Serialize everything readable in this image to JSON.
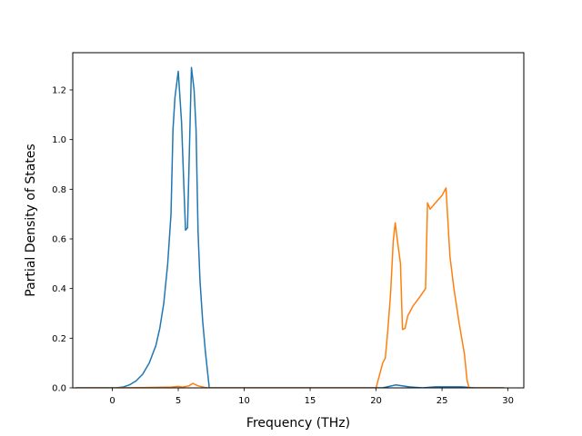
{
  "chart_data": {
    "type": "line",
    "title": "",
    "xlabel": "Frequency (THz)",
    "ylabel": "Partial Density of States",
    "xlim": [
      -3.0,
      31.2
    ],
    "ylim": [
      0.0,
      1.35
    ],
    "xticks": [
      0,
      5,
      10,
      15,
      20,
      25,
      30
    ],
    "yticks": [
      0.0,
      0.2,
      0.4,
      0.6,
      0.8,
      1.0,
      1.2
    ],
    "xtick_labels": [
      "0",
      "5",
      "10",
      "15",
      "20",
      "25",
      "30"
    ],
    "ytick_labels": [
      "0.0",
      "0.2",
      "0.4",
      "0.6",
      "0.8",
      "1.0",
      "1.2"
    ],
    "grid": false,
    "legend": "none",
    "series": [
      {
        "color": "#1f77b4",
        "points": [
          [
            -2.8,
            0.0
          ],
          [
            0.3,
            0.0
          ],
          [
            0.8,
            0.003
          ],
          [
            1.3,
            0.012
          ],
          [
            1.8,
            0.028
          ],
          [
            2.3,
            0.055
          ],
          [
            2.8,
            0.1
          ],
          [
            3.3,
            0.17
          ],
          [
            3.6,
            0.24
          ],
          [
            3.9,
            0.34
          ],
          [
            4.2,
            0.5
          ],
          [
            4.45,
            0.7
          ],
          [
            4.6,
            1.04
          ],
          [
            4.75,
            1.17
          ],
          [
            5.0,
            1.275
          ],
          [
            5.25,
            1.07
          ],
          [
            5.4,
            0.85
          ],
          [
            5.55,
            0.635
          ],
          [
            5.7,
            0.645
          ],
          [
            6.0,
            1.29
          ],
          [
            6.2,
            1.2
          ],
          [
            6.35,
            1.04
          ],
          [
            6.5,
            0.63
          ],
          [
            6.65,
            0.43
          ],
          [
            6.85,
            0.27
          ],
          [
            7.05,
            0.15
          ],
          [
            7.25,
            0.05
          ],
          [
            7.35,
            0.0
          ],
          [
            20.5,
            0.0
          ],
          [
            21.5,
            0.012
          ],
          [
            22.5,
            0.004
          ],
          [
            23.5,
            0.0
          ],
          [
            24.5,
            0.004
          ],
          [
            26.5,
            0.004
          ],
          [
            27.5,
            0.0
          ],
          [
            29.7,
            0.0
          ]
        ]
      },
      {
        "color": "#ff7f0e",
        "points": [
          [
            -2.8,
            0.0
          ],
          [
            0.5,
            0.0
          ],
          [
            2.0,
            0.001
          ],
          [
            4.5,
            0.003
          ],
          [
            5.0,
            0.006
          ],
          [
            5.3,
            0.003
          ],
          [
            5.8,
            0.008
          ],
          [
            6.1,
            0.018
          ],
          [
            6.5,
            0.008
          ],
          [
            7.0,
            0.002
          ],
          [
            7.4,
            0.0
          ],
          [
            20.0,
            0.0
          ],
          [
            20.2,
            0.04
          ],
          [
            20.5,
            0.1
          ],
          [
            20.7,
            0.12
          ],
          [
            20.9,
            0.24
          ],
          [
            21.1,
            0.38
          ],
          [
            21.3,
            0.59
          ],
          [
            21.45,
            0.665
          ],
          [
            21.6,
            0.6
          ],
          [
            21.85,
            0.5
          ],
          [
            22.0,
            0.235
          ],
          [
            22.2,
            0.24
          ],
          [
            22.4,
            0.29
          ],
          [
            22.8,
            0.33
          ],
          [
            23.3,
            0.365
          ],
          [
            23.75,
            0.4
          ],
          [
            23.9,
            0.745
          ],
          [
            24.1,
            0.72
          ],
          [
            24.5,
            0.745
          ],
          [
            25.0,
            0.775
          ],
          [
            25.3,
            0.805
          ],
          [
            25.6,
            0.53
          ],
          [
            25.9,
            0.4
          ],
          [
            26.3,
            0.26
          ],
          [
            26.7,
            0.135
          ],
          [
            26.9,
            0.03
          ],
          [
            27.05,
            0.0
          ],
          [
            29.7,
            0.0
          ]
        ]
      }
    ]
  }
}
